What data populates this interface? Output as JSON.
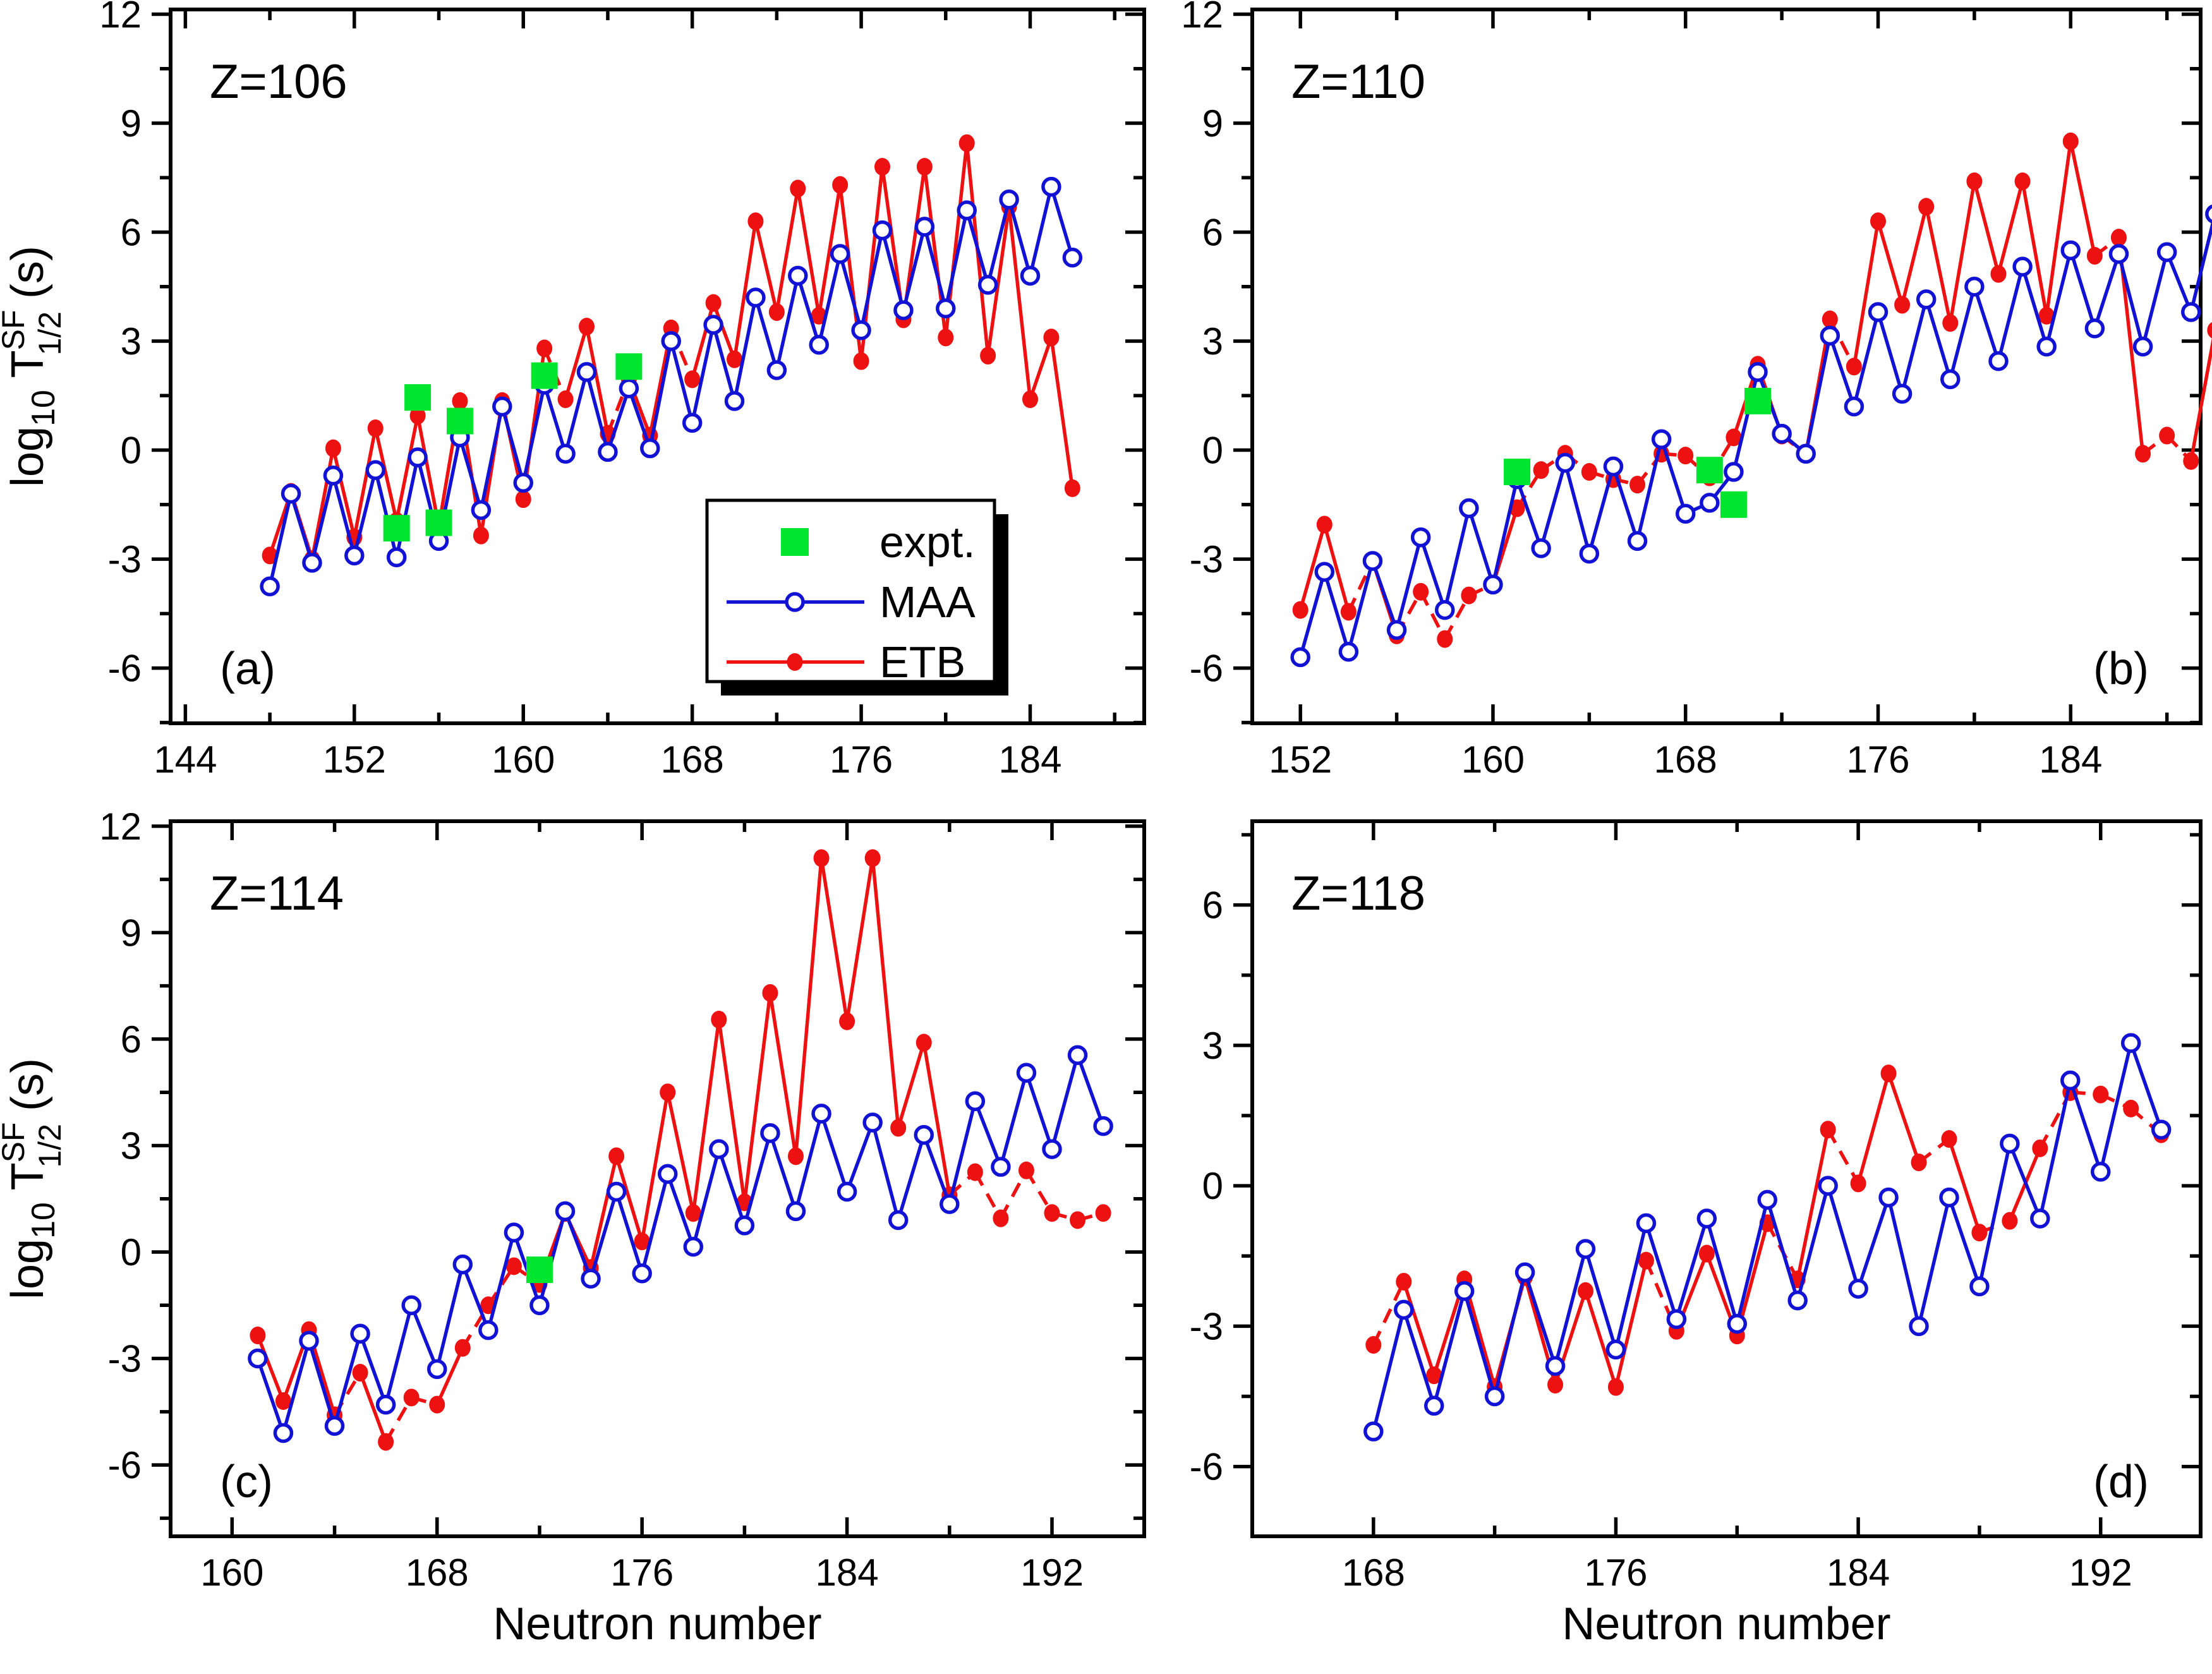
{
  "figure": {
    "xlabel": "Neutron number",
    "ylabel_parts": {
      "log": "log",
      "log_sub": "10",
      "t": " T",
      "t_sup": "SF",
      "t_sub": "1/2",
      "units": " (s)"
    },
    "colors": {
      "etb": "#ee1111",
      "maa": "#1212d4",
      "expt": "#00e62e",
      "frame": "#000000",
      "background": "#ffffff"
    }
  },
  "legend": {
    "items": [
      {
        "key": "expt",
        "label": "expt.",
        "marker": "square"
      },
      {
        "key": "maa",
        "label": "MAA",
        "marker": "open-circle-line"
      },
      {
        "key": "etb",
        "label": "ETB",
        "marker": "filled-circle-line"
      }
    ]
  },
  "chart_data": [
    {
      "id": "a",
      "type": "line",
      "title": "Z=106",
      "panel_letter": "(a)",
      "xlim": [
        143.3,
        189.4
      ],
      "ylim": [
        -7.52,
        12.13
      ],
      "x_major_ticks": [
        144,
        152,
        160,
        168,
        176,
        184
      ],
      "x_minor_ticks": [
        148,
        156,
        164,
        172,
        180,
        188
      ],
      "y_major_ticks": [
        -6,
        -3,
        0,
        3,
        6,
        9,
        12
      ],
      "y_minor_ticks": [
        -7.5,
        -4.5,
        -1.5,
        1.5,
        4.5,
        7.5,
        10.5
      ],
      "n_start": 148,
      "series": [
        {
          "name": "ETB",
          "values": [
            -2.9,
            -1.15,
            -3.0,
            0.05,
            -2.4,
            0.6,
            -1.95,
            0.95,
            -2.1,
            1.35,
            -2.35,
            1.35,
            -1.35,
            2.8,
            1.4,
            3.4,
            0.45,
            1.95,
            0.4,
            3.35,
            1.95,
            4.05,
            2.5,
            6.3,
            3.8,
            7.2,
            3.7,
            7.3,
            2.45,
            7.8,
            3.6,
            7.8,
            3.1,
            8.45,
            2.6,
            6.7,
            1.4,
            3.1,
            -1.05
          ]
        },
        {
          "name": "MAA",
          "values": [
            -3.75,
            -1.2,
            -3.1,
            -0.7,
            -2.9,
            -0.55,
            -2.95,
            -0.2,
            -2.5,
            0.35,
            -1.65,
            1.2,
            -0.9,
            1.8,
            -0.1,
            2.15,
            -0.05,
            1.7,
            0.05,
            3.0,
            0.75,
            3.45,
            1.35,
            4.2,
            2.2,
            4.8,
            2.9,
            5.4,
            3.3,
            6.05,
            3.85,
            6.15,
            3.9,
            6.6,
            4.55,
            6.9,
            4.8,
            7.25,
            5.3
          ]
        }
      ],
      "expt": {
        "x": [
          154,
          155,
          156,
          157,
          161,
          165
        ],
        "y": [
          -2.15,
          1.45,
          -2.0,
          0.8,
          2.05,
          2.3
        ]
      }
    },
    {
      "id": "b",
      "type": "line",
      "title": "Z=110",
      "panel_letter": "(b)",
      "xlim": [
        150.0,
        189.4
      ],
      "ylim": [
        -7.52,
        12.13
      ],
      "x_major_ticks": [
        152,
        160,
        168,
        176,
        184
      ],
      "x_minor_ticks": [
        156,
        164,
        172,
        180,
        188
      ],
      "y_major_ticks": [
        -6,
        -3,
        0,
        3,
        6,
        9,
        12
      ],
      "y_minor_ticks": [
        -7.5,
        -4.5,
        -1.5,
        1.5,
        4.5,
        7.5,
        10.5
      ],
      "n_start": 152,
      "series": [
        {
          "name": "ETB",
          "values": [
            -4.4,
            -2.05,
            -4.45,
            -3.05,
            -5.1,
            -3.9,
            -5.2,
            -4.0,
            -3.7,
            -1.6,
            -0.55,
            -0.1,
            -0.6,
            -0.8,
            -0.95,
            -0.1,
            -0.15,
            -0.75,
            0.35,
            2.35,
            0.4,
            -0.1,
            3.6,
            2.3,
            6.3,
            4.0,
            6.7,
            3.5,
            7.4,
            4.85,
            7.4,
            3.7,
            8.5,
            5.35,
            5.85,
            -0.1,
            0.4,
            -0.3,
            3.3
          ]
        },
        {
          "name": "MAA",
          "values": [
            -5.7,
            -3.35,
            -5.55,
            -3.05,
            -4.95,
            -2.4,
            -4.4,
            -1.6,
            -3.7,
            -0.8,
            -2.7,
            -0.35,
            -2.85,
            -0.45,
            -2.5,
            0.3,
            -1.75,
            -1.45,
            -0.6,
            2.15,
            0.45,
            -0.1,
            3.15,
            1.2,
            3.8,
            1.55,
            4.15,
            1.95,
            4.5,
            2.45,
            5.05,
            2.85,
            5.5,
            3.35,
            5.4,
            2.85,
            5.45,
            3.8,
            6.5
          ]
        }
      ],
      "expt": {
        "x": [
          161,
          169,
          170,
          171
        ],
        "y": [
          -0.6,
          -0.55,
          -1.5,
          1.35
        ]
      }
    },
    {
      "id": "c",
      "type": "line",
      "title": "Z=114",
      "panel_letter": "(c)",
      "xlim": [
        157.6,
        195.6
      ],
      "ylim": [
        -8.01,
        12.14
      ],
      "x_major_ticks": [
        160,
        168,
        176,
        184,
        192
      ],
      "x_minor_ticks": [
        164,
        172,
        180,
        188
      ],
      "y_major_ticks": [
        -6,
        -3,
        0,
        3,
        6,
        9,
        12
      ],
      "y_minor_ticks": [
        -7.5,
        -4.5,
        -1.5,
        1.5,
        4.5,
        7.5,
        10.5
      ],
      "n_start": 161,
      "series": [
        {
          "name": "ETB",
          "values": [
            -2.35,
            -4.2,
            -2.2,
            -4.6,
            -3.4,
            -5.35,
            -4.1,
            -4.3,
            -2.7,
            -1.5,
            -0.4,
            -0.9,
            1.1,
            -0.45,
            2.7,
            0.3,
            4.5,
            1.1,
            6.55,
            1.4,
            7.3,
            2.7,
            11.1,
            6.5,
            11.1,
            3.5,
            5.9,
            1.6,
            2.25,
            0.95,
            2.3,
            1.1,
            0.9,
            1.1
          ]
        },
        {
          "name": "MAA",
          "values": [
            -3.0,
            -5.1,
            -2.5,
            -4.9,
            -2.3,
            -4.3,
            -1.5,
            -3.3,
            -0.35,
            -2.2,
            0.55,
            -1.5,
            1.15,
            -0.75,
            1.7,
            -0.6,
            2.2,
            0.15,
            2.9,
            0.75,
            3.35,
            1.15,
            3.9,
            1.7,
            3.65,
            0.9,
            3.3,
            1.35,
            4.25,
            2.4,
            5.05,
            2.9,
            5.55,
            3.55
          ]
        }
      ],
      "expt": {
        "x": [
          172
        ],
        "y": [
          -0.5
        ]
      }
    },
    {
      "id": "d",
      "type": "line",
      "title": "Z=118",
      "panel_letter": "(d)",
      "xlim": [
        164.0,
        195.3
      ],
      "ylim": [
        -7.49,
        7.79
      ],
      "x_major_ticks": [
        168,
        176,
        184,
        192
      ],
      "x_minor_ticks": [
        164,
        172,
        180,
        188
      ],
      "y_major_ticks": [
        -6,
        -3,
        0,
        3,
        6
      ],
      "y_minor_ticks": [
        -7.5,
        -4.5,
        -1.5,
        1.5,
        4.5,
        7.5
      ],
      "n_start": 168,
      "series": [
        {
          "name": "ETB",
          "values": [
            -3.4,
            -2.05,
            -4.05,
            -2.0,
            -4.3,
            -1.95,
            -4.25,
            -2.25,
            -4.3,
            -1.6,
            -3.1,
            -1.45,
            -3.2,
            -0.8,
            -2.0,
            1.2,
            0.05,
            2.4,
            0.5,
            1.0,
            -1.0,
            -0.75,
            0.8,
            2.0,
            1.95,
            1.65,
            1.1
          ]
        },
        {
          "name": "MAA",
          "values": [
            -5.25,
            -2.65,
            -4.7,
            -2.25,
            -4.5,
            -1.85,
            -3.85,
            -1.35,
            -3.5,
            -0.8,
            -2.85,
            -0.7,
            -2.95,
            -0.3,
            -2.45,
            0.0,
            -2.2,
            -0.25,
            -3.0,
            -0.25,
            -2.15,
            0.9,
            -0.7,
            2.25,
            0.3,
            3.05,
            1.2
          ]
        }
      ],
      "expt": {
        "x": [],
        "y": []
      }
    }
  ]
}
